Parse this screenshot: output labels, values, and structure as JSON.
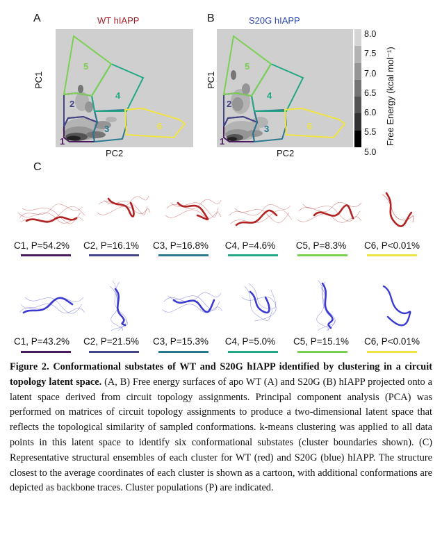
{
  "panels": {
    "a": {
      "letter": "A",
      "title": "WT hIAPP",
      "xlabel": "PC2",
      "ylabel": "PC1"
    },
    "b": {
      "letter": "B",
      "title": "S20G hIAPP",
      "xlabel": "PC2",
      "ylabel": "PC1"
    },
    "c": {
      "letter": "C"
    }
  },
  "colorbar": {
    "label": "Free Energy (kcal mol⁻¹)",
    "ticks": [
      "8.0",
      "7.5",
      "7.0",
      "6.5",
      "6.0",
      "5.5",
      "5.0"
    ],
    "colors": [
      "#d4d4d4",
      "#b3b3b3",
      "#959595",
      "#757575",
      "#545454",
      "#333333",
      "#000000"
    ]
  },
  "cluster_numbers": [
    "1",
    "2",
    "3",
    "4",
    "5",
    "6"
  ],
  "cluster_colors": [
    "#4a1a5e",
    "#414487",
    "#2a788e",
    "#22a884",
    "#7ad151",
    "#f0e442"
  ],
  "wt_clusters": [
    {
      "label": "C1, P=54.2%"
    },
    {
      "label": "C2, P=16.1%"
    },
    {
      "label": "C3, P=16.8%"
    },
    {
      "label": "C4, P=4.6%"
    },
    {
      "label": "C5, P=8.3%"
    },
    {
      "label": "C6, P<0.01%"
    }
  ],
  "s20g_clusters": [
    {
      "label": "C1, P=43.2%"
    },
    {
      "label": "C2, P=21.5%"
    },
    {
      "label": "C3, P=15.3%"
    },
    {
      "label": "C4, P=5.0%"
    },
    {
      "label": "C5, P=15.1%"
    },
    {
      "label": "C6, P<0.01%"
    }
  ],
  "ensemble_colors": {
    "wt": "#b22222",
    "s20g": "#3a3ad0"
  },
  "caption": {
    "title": "Figure 2. Conformational substates of WT and S20G hIAPP identified by clustering in a circuit topology latent space.",
    "body": " (A, B) Free energy surfaces of apo WT (A) and S20G (B) hIAPP projected onto a latent space derived from circuit topology assignments. Principal component analysis (PCA) was performed on matrices of circuit topology assignments to produce a two-dimensional latent space that reflects the topological similarity of sampled conformations. k-means clustering was applied to all data points in this latent space to identify six conformational substates (cluster boundaries shown). (C) Representative structural ensembles of each cluster for WT (red) and S20G (blue) hIAPP.  The structure closest to the average coordinates of each cluster is shown as a cartoon, with additional conformations are depicted as backbone traces. Cluster populations (P) are indicated."
  }
}
